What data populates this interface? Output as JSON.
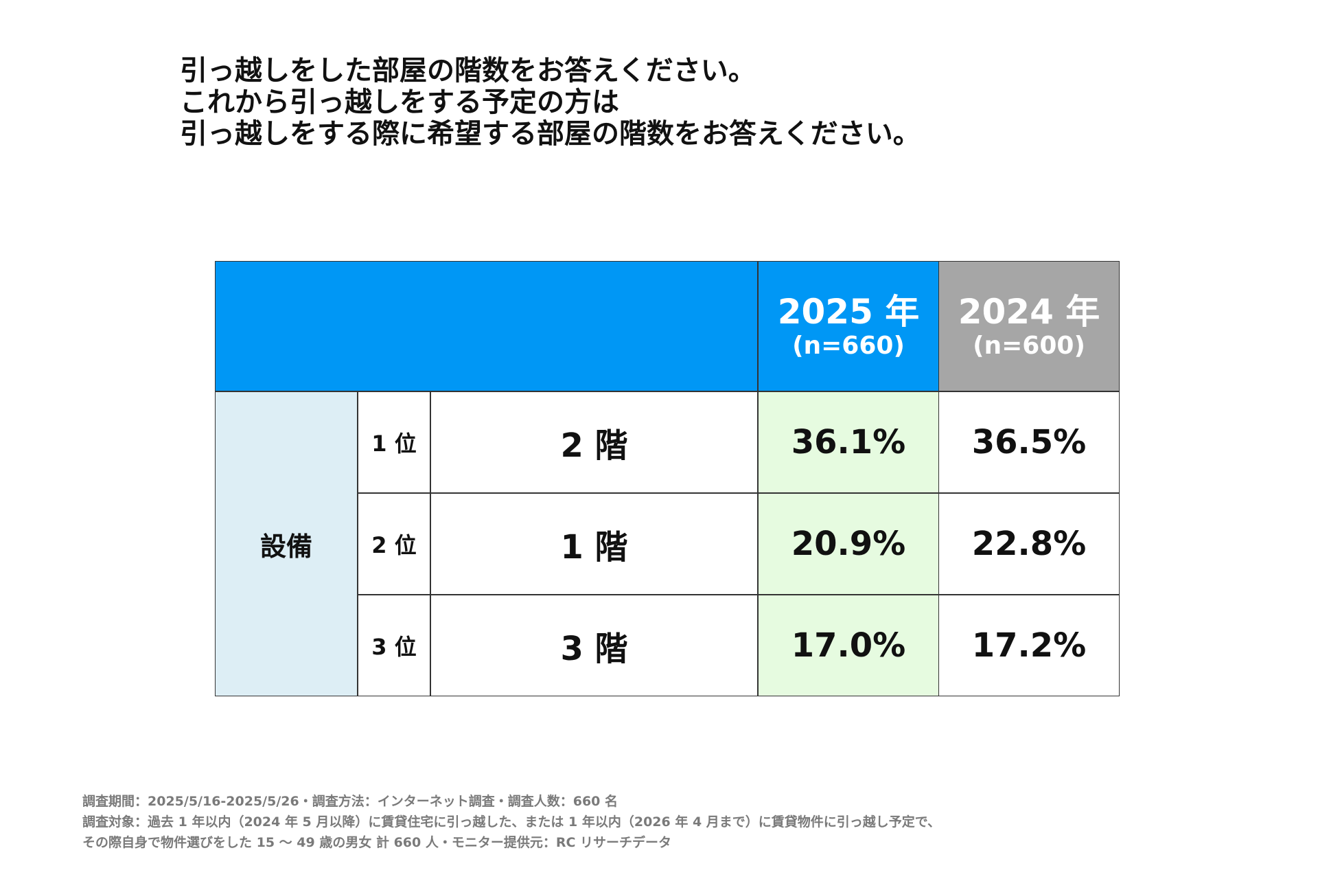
{
  "title": {
    "line1": "引っ越しをした部屋の階数をお答えください。",
    "line2": "これから引っ越しをする予定の方は",
    "line3": "引っ越しをする際に希望する部屋の階数をお答えください。"
  },
  "chart_data": {
    "type": "table",
    "columns": [
      {
        "year": "2025 年",
        "n": "(n=660)",
        "color": "#0097f5"
      },
      {
        "year": "2024 年",
        "n": "(n=600)",
        "color": "#a6a6a6"
      }
    ],
    "group_label": "設備",
    "rows": [
      {
        "rank": "1 位",
        "item": "2 階",
        "values": [
          "36.1%",
          "36.5%"
        ]
      },
      {
        "rank": "2 位",
        "item": "1 階",
        "values": [
          "20.9%",
          "22.8%"
        ]
      },
      {
        "rank": "3 位",
        "item": "3 階",
        "values": [
          "17.0%",
          "17.2%"
        ]
      }
    ]
  },
  "footnote": {
    "line1": "調査期間：2025/5/16-2025/5/26・調査方法：インターネット調査・調査人数：660 名",
    "line2": "調査対象：過去 1 年以内（2024 年 5 月以降）に賃貸住宅に引っ越した、または 1 年以内（2026 年 4 月まで）に賃貸物件に引っ越し予定で、",
    "line3": "その際自身で物件選びをした 15 ～ 49 歳の男女 計 660 人・モニター提供元：RC リサーチデータ"
  }
}
